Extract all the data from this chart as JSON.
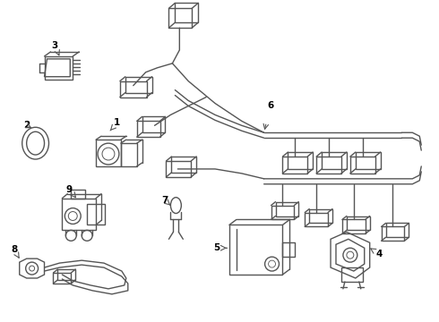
{
  "background_color": "#ffffff",
  "line_color": "#555555",
  "label_color": "#000000",
  "lw": 1.0,
  "fig_width": 4.9,
  "fig_height": 3.6,
  "dpi": 100
}
